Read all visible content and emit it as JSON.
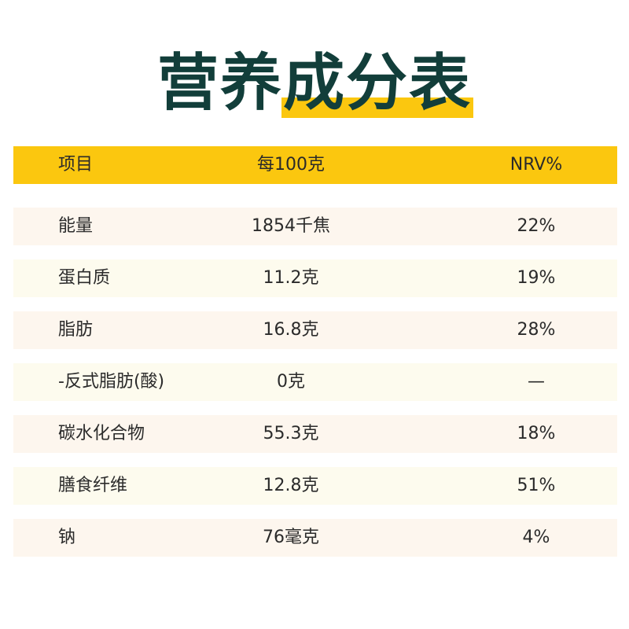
{
  "title": "营养成分表",
  "header": {
    "item": "项目",
    "per100": "每100克",
    "nrv": "NRV%"
  },
  "rows": [
    {
      "item": "能量",
      "value": "1854千焦",
      "nrv": "22%"
    },
    {
      "item": "蛋白质",
      "value": "11.2克",
      "nrv": "19%"
    },
    {
      "item": "脂肪",
      "value": "16.8克",
      "nrv": "28%"
    },
    {
      "item": "-反式脂肪(酸)",
      "value": "0克",
      "nrv": "—"
    },
    {
      "item": "碳水化合物",
      "value": "55.3克",
      "nrv": "18%"
    },
    {
      "item": "膳食纤维",
      "value": "12.8克",
      "nrv": "51%"
    },
    {
      "item": "钠",
      "value": "76毫克",
      "nrv": "4%"
    }
  ],
  "colors": {
    "accent": "#fbc70f",
    "title": "#123e3a",
    "row_odd": "#fdf6ee",
    "row_even": "#fdfbee"
  }
}
